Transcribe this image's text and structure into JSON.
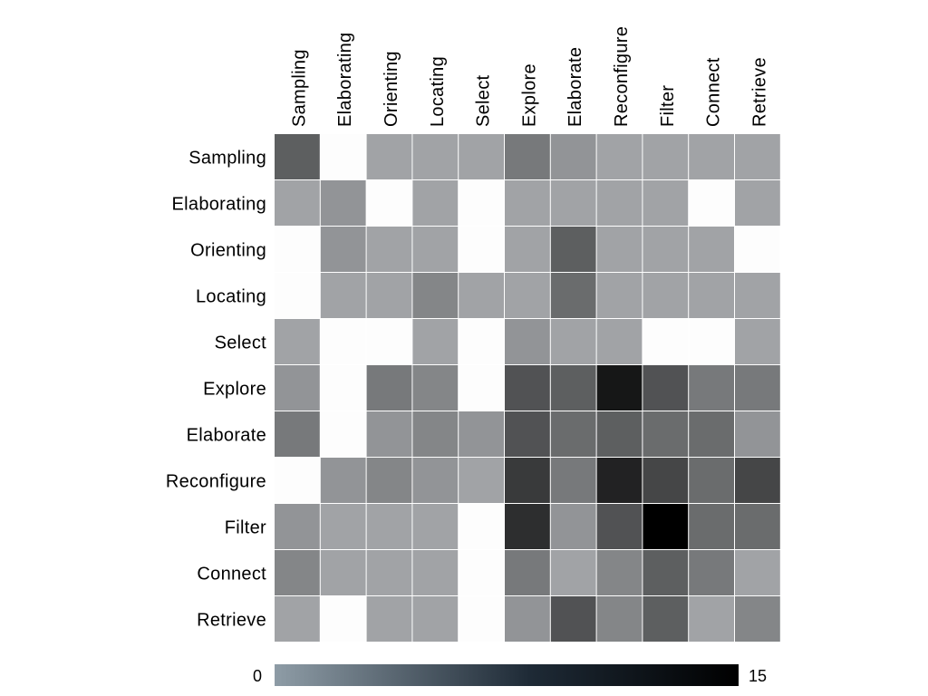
{
  "chart_data": {
    "type": "heatmap",
    "x_categories": [
      "Sampling",
      "Elaborating",
      "Orienting",
      "Locating",
      "Select",
      "Explore",
      "Elaborate",
      "Reconfigure",
      "Filter",
      "Connect",
      "Retrieve"
    ],
    "y_categories": [
      "Sampling",
      "Elaborating",
      "Orienting",
      "Locating",
      "Select",
      "Explore",
      "Elaborate",
      "Reconfigure",
      "Filter",
      "Connect",
      "Retrieve"
    ],
    "values": [
      [
        7,
        0,
        2,
        2,
        2,
        5,
        3,
        2,
        2,
        2,
        2
      ],
      [
        2,
        3,
        0,
        2,
        0,
        2,
        2,
        2,
        2,
        0,
        2
      ],
      [
        0,
        3,
        2,
        2,
        0,
        2,
        7,
        2,
        2,
        2,
        0
      ],
      [
        0,
        2,
        2,
        4,
        2,
        2,
        6,
        2,
        2,
        2,
        2
      ],
      [
        2,
        0,
        0,
        2,
        0,
        3,
        2,
        2,
        0,
        0,
        2
      ],
      [
        3,
        0,
        5,
        4,
        0,
        8,
        7,
        13,
        8,
        5,
        5
      ],
      [
        5,
        0,
        3,
        4,
        3,
        8,
        6,
        7,
        6,
        6,
        3
      ],
      [
        0,
        3,
        4,
        3,
        2,
        10,
        5,
        12,
        9,
        6,
        9
      ],
      [
        3,
        2,
        2,
        2,
        0,
        11,
        3,
        8,
        15,
        6,
        6
      ],
      [
        4,
        2,
        2,
        2,
        0,
        5,
        2,
        4,
        7,
        5,
        2
      ],
      [
        2,
        0,
        2,
        2,
        0,
        3,
        8,
        4,
        7,
        2,
        4
      ]
    ],
    "colorbar": {
      "min": 0,
      "max": 15,
      "min_label": "0",
      "max_label": "15",
      "low_color": "#8E9CA6",
      "high_color": "#000000",
      "zero_color": "#FDFDFD"
    },
    "grid": true,
    "x_label_rotation": "vertical"
  }
}
